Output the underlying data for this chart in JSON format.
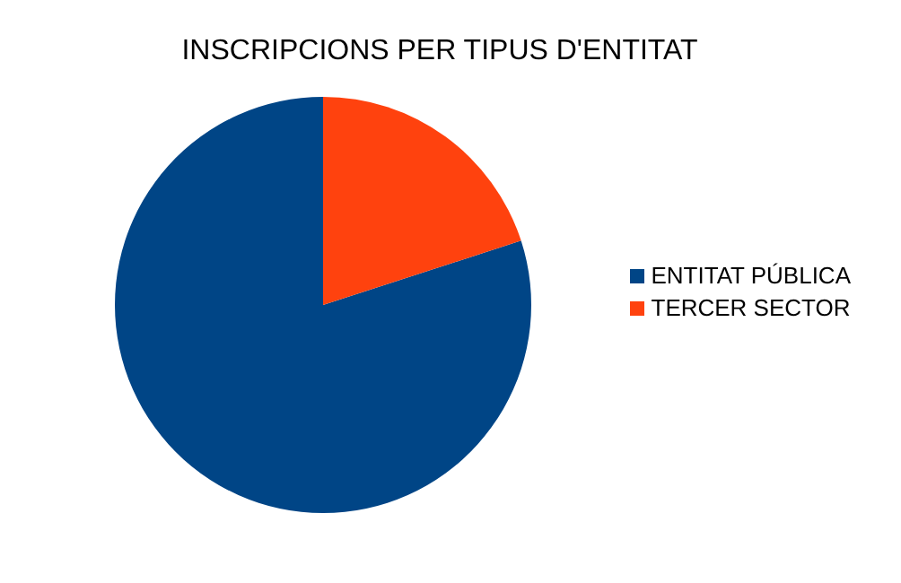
{
  "chart_data": {
    "type": "pie",
    "title": "INSCRIPCIONS PER TIPUS D'ENTITAT",
    "categories": [
      "ENTITAT PÚBLICA",
      "TERCER SECTOR"
    ],
    "values": [
      80,
      20
    ],
    "colors": [
      "#004586",
      "#ff420e"
    ],
    "legend": "right"
  }
}
